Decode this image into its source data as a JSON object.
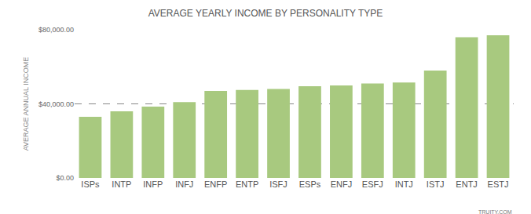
{
  "chart_data": {
    "type": "bar",
    "title": "AVERAGE YEARLY INCOME BY PERSONALITY TYPE",
    "ylabel": "AVERAGE ANNUAL INCOME",
    "categories": [
      "ISPs",
      "INTP",
      "INFP",
      "INFJ",
      "ENFP",
      "ENTP",
      "ISFJ",
      "ESPs",
      "ENFJ",
      "ESFJ",
      "INTJ",
      "ISTJ",
      "ENTJ",
      "ESTJ"
    ],
    "values": [
      33000,
      36000,
      38500,
      41000,
      47000,
      47500,
      48000,
      49500,
      50000,
      51000,
      51500,
      58000,
      76000,
      77000
    ],
    "color": "#a8c97f",
    "ylim": [
      0,
      80000
    ],
    "yticks": [
      {
        "value": 0,
        "label": "$0.00"
      },
      {
        "value": 40000,
        "label": "$40,000.00"
      },
      {
        "value": 80000,
        "label": "$80,000.00"
      }
    ],
    "grid": true,
    "annotations": [
      "TRUITY.COM"
    ]
  }
}
